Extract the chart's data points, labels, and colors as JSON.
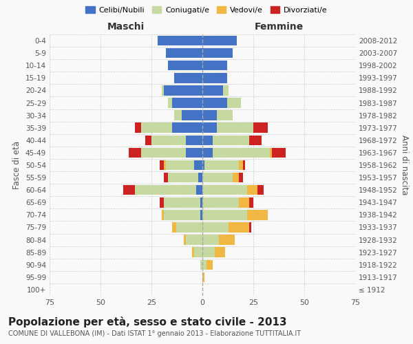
{
  "age_groups": [
    "100+",
    "95-99",
    "90-94",
    "85-89",
    "80-84",
    "75-79",
    "70-74",
    "65-69",
    "60-64",
    "55-59",
    "50-54",
    "45-49",
    "40-44",
    "35-39",
    "30-34",
    "25-29",
    "20-24",
    "15-19",
    "10-14",
    "5-9",
    "0-4"
  ],
  "birth_years": [
    "≤ 1912",
    "1913-1917",
    "1918-1922",
    "1923-1927",
    "1928-1932",
    "1933-1937",
    "1938-1942",
    "1943-1947",
    "1948-1952",
    "1953-1957",
    "1958-1962",
    "1963-1967",
    "1968-1972",
    "1973-1977",
    "1978-1982",
    "1983-1987",
    "1988-1992",
    "1993-1997",
    "1998-2002",
    "2003-2007",
    "2008-2012"
  ],
  "colors": {
    "celibi": "#4472c4",
    "coniugati": "#c5d9a0",
    "vedovi": "#f0b842",
    "divorziati": "#cc2222"
  },
  "male": {
    "celibi": [
      0,
      0,
      0,
      0,
      0,
      0,
      1,
      1,
      3,
      2,
      4,
      8,
      8,
      15,
      10,
      15,
      19,
      14,
      17,
      18,
      22
    ],
    "coniugati": [
      0,
      0,
      1,
      4,
      8,
      13,
      18,
      18,
      30,
      15,
      14,
      22,
      17,
      15,
      4,
      2,
      1,
      0,
      0,
      0,
      0
    ],
    "vedovi": [
      0,
      0,
      0,
      1,
      1,
      2,
      1,
      0,
      0,
      0,
      1,
      0,
      0,
      0,
      0,
      0,
      0,
      0,
      0,
      0,
      0
    ],
    "divorziati": [
      0,
      0,
      0,
      0,
      0,
      0,
      0,
      2,
      6,
      2,
      2,
      6,
      3,
      3,
      0,
      0,
      0,
      0,
      0,
      0,
      0
    ]
  },
  "female": {
    "celibi": [
      0,
      0,
      0,
      0,
      0,
      0,
      0,
      0,
      0,
      0,
      1,
      5,
      5,
      7,
      7,
      12,
      10,
      12,
      12,
      15,
      17
    ],
    "coniugati": [
      0,
      0,
      2,
      6,
      8,
      13,
      22,
      18,
      22,
      15,
      17,
      28,
      18,
      18,
      8,
      7,
      3,
      0,
      0,
      0,
      0
    ],
    "vedovi": [
      0,
      1,
      3,
      5,
      8,
      10,
      10,
      5,
      5,
      3,
      2,
      1,
      0,
      0,
      0,
      0,
      0,
      0,
      0,
      0,
      0
    ],
    "divorziati": [
      0,
      0,
      0,
      0,
      0,
      1,
      0,
      2,
      3,
      2,
      1,
      7,
      6,
      7,
      0,
      0,
      0,
      0,
      0,
      0,
      0
    ]
  },
  "title": "Popolazione per età, sesso e stato civile - 2013",
  "subtitle": "COMUNE DI VALLEBONA (IM) - Dati ISTAT 1° gennaio 2013 - Elaborazione TUTTITALIA.IT",
  "xlabel_left": "Maschi",
  "xlabel_right": "Femmine",
  "ylabel_left": "Fasce di età",
  "ylabel_right": "Anni di nascita",
  "xlim": 75,
  "bg_color": "#f9f9f9",
  "grid_color": "#cccccc",
  "bar_height": 0.8,
  "legend_labels": [
    "Celibi/Nubili",
    "Coniugati/e",
    "Vedovi/e",
    "Divorziati/e"
  ]
}
